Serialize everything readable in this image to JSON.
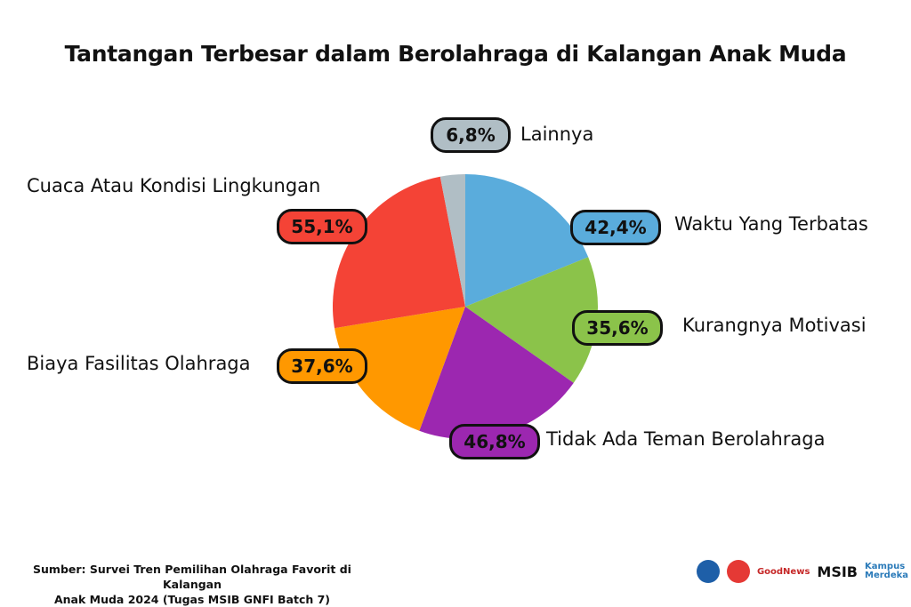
{
  "chart_data": {
    "type": "pie",
    "title": "Tantangan Terbesar dalam Berolahraga di Kalangan Anak Muda",
    "slices": [
      {
        "label": "Waktu Yang Terbatas",
        "value": 42.4,
        "display": "42,4%",
        "color": "#5aacdc"
      },
      {
        "label": "Kurangnya Motivasi",
        "value": 35.6,
        "display": "35,6%",
        "color": "#8bc34a"
      },
      {
        "label": "Tidak Ada Teman Berolahraga",
        "value": 46.8,
        "display": "46,8%",
        "color": "#9c27b0"
      },
      {
        "label": "Biaya Fasilitas Olahraga",
        "value": 37.6,
        "display": "37,6%",
        "color": "#ff9800"
      },
      {
        "label": "Cuaca Atau Kondisi Lingkungan",
        "value": 55.1,
        "display": "55,1%",
        "color": "#f44336"
      },
      {
        "label": "Lainnya",
        "value": 6.8,
        "display": "6,8%",
        "color": "#b0bec5"
      }
    ],
    "start_angle": "12 o'clock",
    "direction": "clockwise"
  },
  "source": {
    "line1": "Sumber: Survei Tren Pemilihan Olahraga Favorit di Kalangan",
    "line2": "Anak Muda 2024 (Tugas MSIB GNFI Batch 7)"
  },
  "logos": {
    "goodnews": "GoodNews",
    "msib": "MSIB",
    "kampus_merdeka": "Kampus Merdeka"
  }
}
